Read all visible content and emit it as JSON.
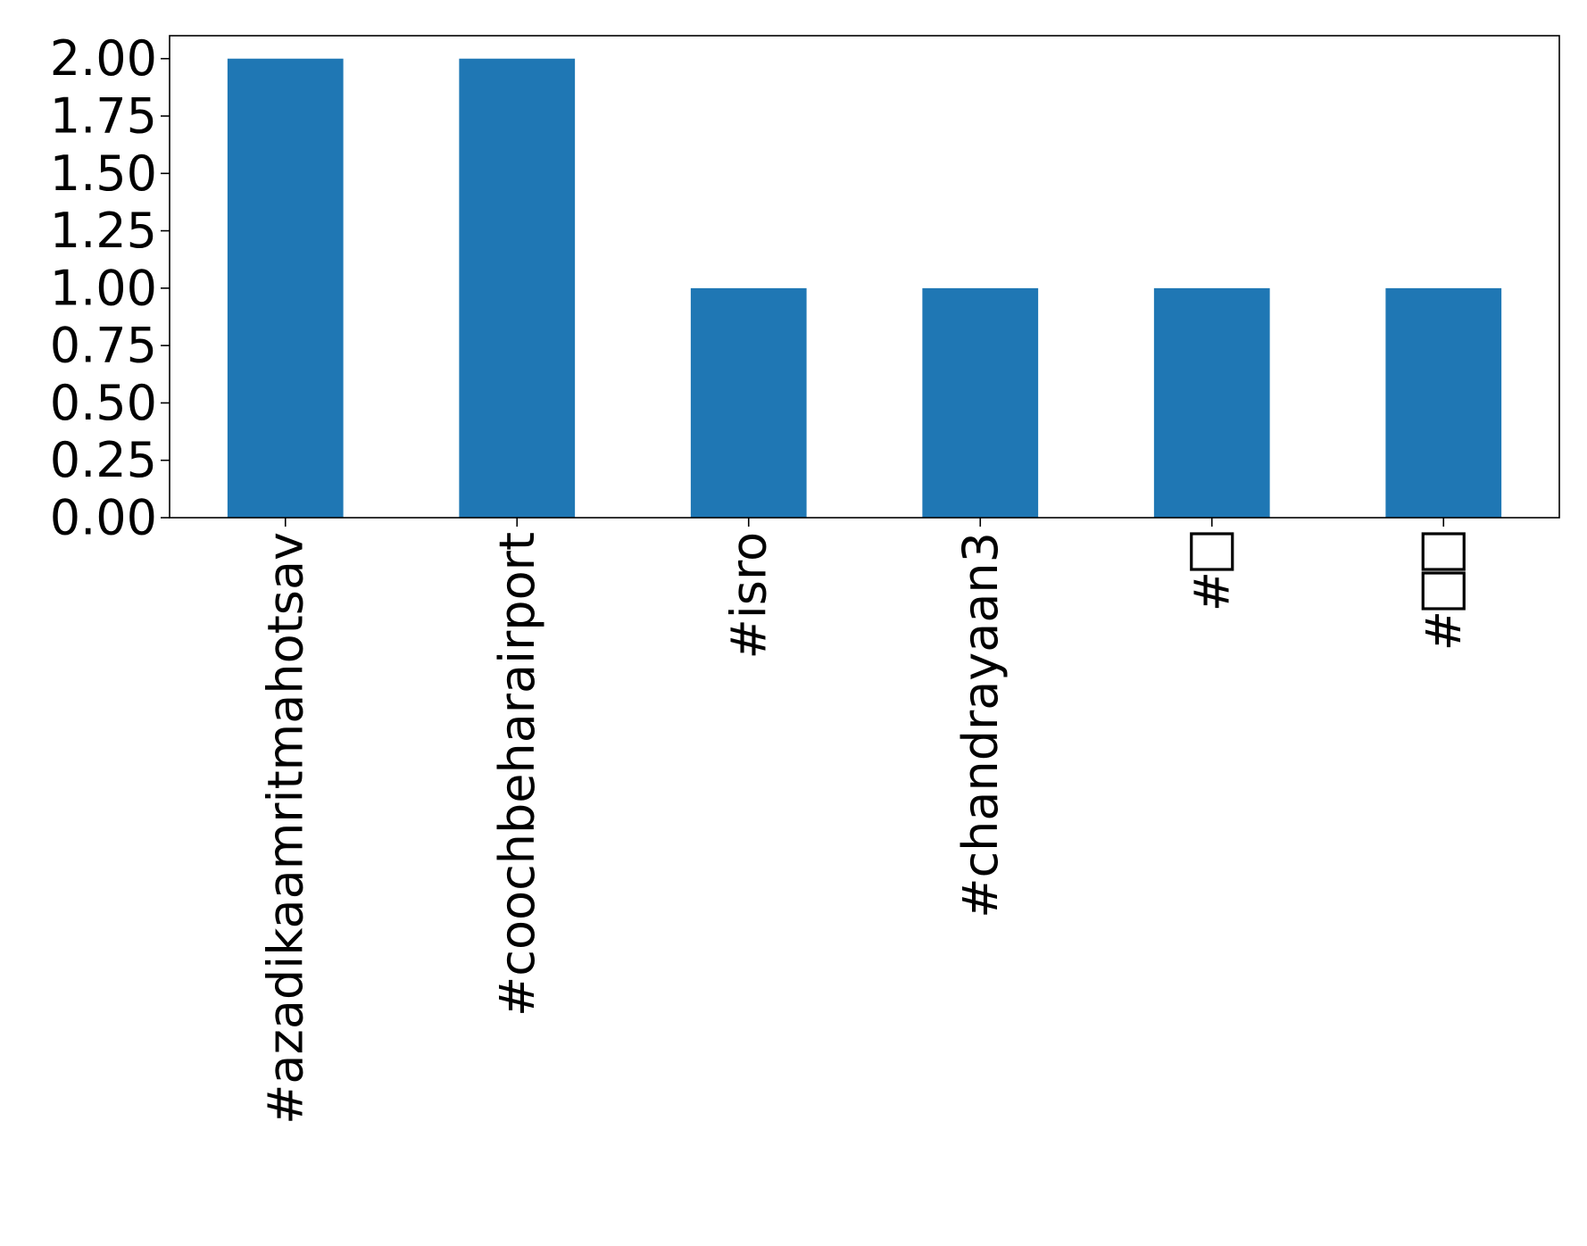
{
  "chart_data": {
    "type": "bar",
    "categories": [
      "#azadikaamritmahotsav",
      "#coochbeharairport",
      "#isro",
      "#chandrayaan3",
      "#□",
      "#□□"
    ],
    "values": [
      2,
      2,
      1,
      1,
      1,
      1
    ],
    "ylim": [
      0,
      2.1
    ],
    "yticks": [
      "0.00",
      "0.25",
      "0.50",
      "0.75",
      "1.00",
      "1.25",
      "1.50",
      "1.75",
      "2.00"
    ],
    "title": "",
    "xlabel": "",
    "ylabel": "",
    "bar_color": "#1f77b4",
    "grid": false,
    "legend": false
  }
}
